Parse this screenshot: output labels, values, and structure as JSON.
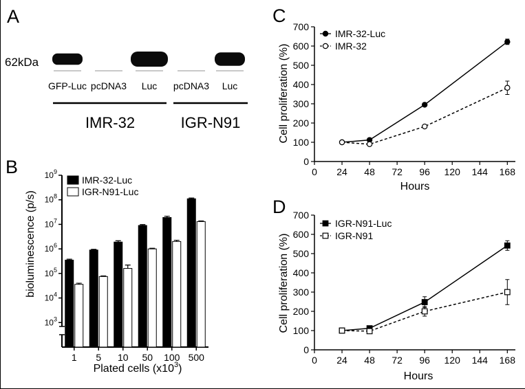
{
  "panels": {
    "A": {
      "letter": "A",
      "marker": "62kDa",
      "lanes": [
        "GFP-Luc",
        "pcDNA3",
        "Luc",
        "pcDNA3",
        "Luc"
      ],
      "band_intensity": [
        0.55,
        0.0,
        1.0,
        0.0,
        0.8
      ],
      "groups": [
        "IMR-32",
        "IGR-N91"
      ]
    },
    "B": {
      "letter": "B"
    },
    "C": {
      "letter": "C"
    },
    "D": {
      "letter": "D"
    }
  },
  "colors": {
    "ink": "#000000",
    "band": "#0b0b0b",
    "paper": "#ffffff",
    "loading_line": "#b5b5b5"
  },
  "chart_data": [
    {
      "id": "B",
      "type": "bar",
      "scale": "log",
      "ylabel": "bioluminescence (p/s)",
      "xlabel": "Plated cells (x10",
      "xlabel_sup": "3",
      "xlabel_end": ")",
      "categories": [
        "1",
        "5",
        "10",
        "50",
        "100",
        "500"
      ],
      "y_ticks": [
        {
          "base": "10",
          "exp": "3",
          "value": 1000
        },
        {
          "base": "10",
          "exp": "4",
          "value": 10000
        },
        {
          "base": "10",
          "exp": "5",
          "value": 100000
        },
        {
          "base": "10",
          "exp": "6",
          "value": 1000000
        },
        {
          "base": "10",
          "exp": "7",
          "value": 10000000
        },
        {
          "base": "10",
          "exp": "8",
          "value": 100000000
        },
        {
          "base": "10",
          "exp": "9",
          "value": 1000000000
        }
      ],
      "ylim": [
        100,
        1000000000
      ],
      "series": [
        {
          "name": "IMR-32-Luc",
          "fill": "#000000",
          "values": [
            350000,
            900000,
            1900000,
            9000000,
            19000000,
            110000000
          ],
          "errors": [
            30000,
            60000,
            250000,
            800000,
            2500000,
            8000000
          ]
        },
        {
          "name": "IGR-N91-Luc",
          "fill": "#ffffff",
          "values": [
            36000,
            75000,
            160000,
            1000000,
            2000000,
            13000000
          ],
          "errors": [
            4000,
            4000,
            60000,
            60000,
            250000,
            800000
          ]
        }
      ]
    },
    {
      "id": "C",
      "type": "line",
      "ylabel": "Cell proliferation (%)",
      "xlabel": "Hours",
      "x_ticks": [
        0,
        24,
        48,
        72,
        96,
        120,
        144,
        168
      ],
      "y_ticks": [
        0,
        100,
        200,
        300,
        400,
        500,
        600,
        700
      ],
      "xlim": [
        0,
        175
      ],
      "ylim": [
        0,
        700
      ],
      "series": [
        {
          "name": "IMR-32-Luc",
          "marker": "circle",
          "filled": true,
          "dashed": false,
          "x": [
            24,
            48,
            96,
            168
          ],
          "y": [
            100,
            112,
            295,
            622
          ],
          "errors": [
            5,
            6,
            8,
            14
          ]
        },
        {
          "name": "IMR-32",
          "marker": "circle",
          "filled": false,
          "dashed": true,
          "x": [
            24,
            48,
            96,
            168
          ],
          "y": [
            100,
            90,
            182,
            383
          ],
          "errors": [
            5,
            6,
            8,
            35
          ]
        }
      ]
    },
    {
      "id": "D",
      "type": "line",
      "ylabel": "Cell proliferation (%)",
      "xlabel": "Hours",
      "x_ticks": [
        0,
        24,
        48,
        72,
        96,
        120,
        144,
        168
      ],
      "y_ticks": [
        0,
        100,
        200,
        300,
        400,
        500,
        600,
        700
      ],
      "xlim": [
        0,
        175
      ],
      "ylim": [
        0,
        700
      ],
      "series": [
        {
          "name": "IGR-N91-Luc",
          "marker": "square",
          "filled": true,
          "dashed": false,
          "x": [
            24,
            48,
            96,
            168
          ],
          "y": [
            100,
            112,
            248,
            542
          ],
          "errors": [
            5,
            6,
            28,
            25
          ]
        },
        {
          "name": "IGR-N91",
          "marker": "square",
          "filled": false,
          "dashed": true,
          "x": [
            24,
            48,
            96,
            168
          ],
          "y": [
            100,
            97,
            200,
            300
          ],
          "errors": [
            5,
            6,
            25,
            65
          ]
        }
      ]
    }
  ]
}
